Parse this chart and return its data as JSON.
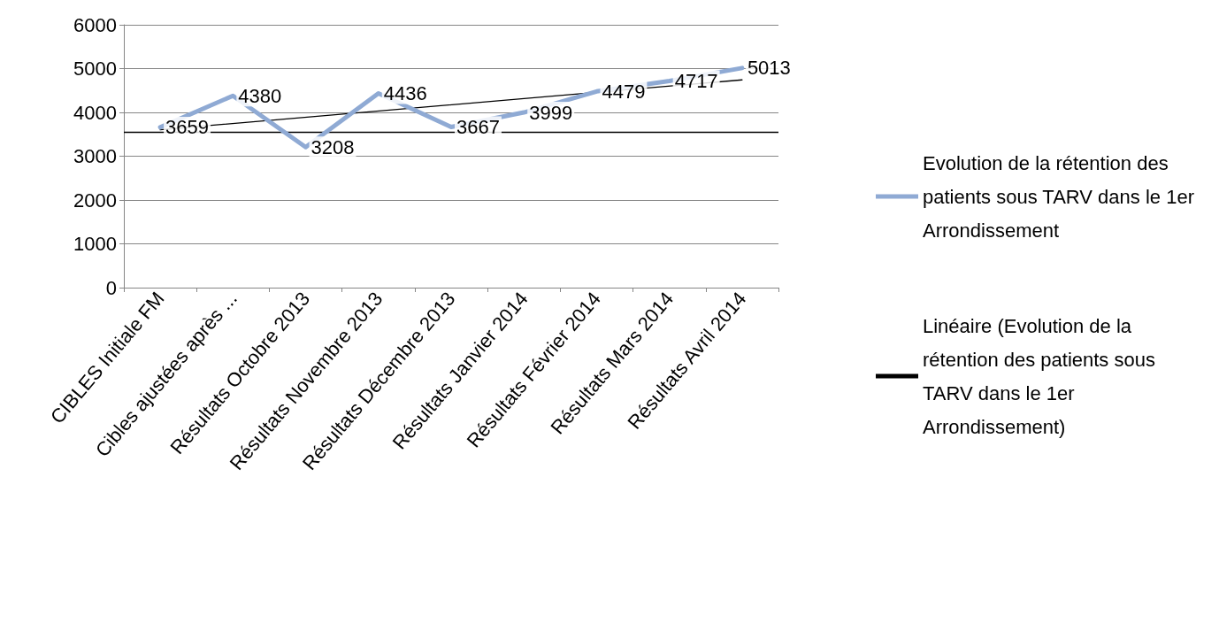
{
  "chart_data": {
    "type": "line",
    "categories": [
      "CIBLES Initiale FM",
      "Cibles ajustées après ...",
      "Résultats Octobre 2013",
      "Résultats Novembre 2013",
      "Résultats Décembre 2013",
      "Résultats Janvier 2014",
      "Résultats Février 2014",
      "Résultats Mars 2014",
      "Résultats Avril 2014"
    ],
    "series": [
      {
        "name": "Evolution de la rétention des patients sous TARV dans le 1er Arrondissement",
        "color": "#8faad4",
        "values": [
          3659,
          4380,
          3208,
          4436,
          3667,
          3999,
          4479,
          4717,
          5013
        ]
      },
      {
        "name": "Linéaire (Evolution de la rétention des patients sous TARV dans le 1er Arrondissement)",
        "type": "line",
        "color": "#000000",
        "x": [
          "CIBLES Initiale FM",
          "Résultats Avril 2014"
        ],
        "values": [
          3604,
          4742
        ],
        "data_labels": false
      }
    ],
    "ylim": [
      0,
      6000
    ],
    "yticks": [
      0,
      1000,
      2000,
      3000,
      4000,
      5000,
      6000
    ],
    "grid": "y",
    "legend": "right",
    "marker": "none",
    "data_labels": true,
    "ref_lines": [
      {
        "axis": "y",
        "value": 3550,
        "color": "#000000"
      }
    ]
  }
}
